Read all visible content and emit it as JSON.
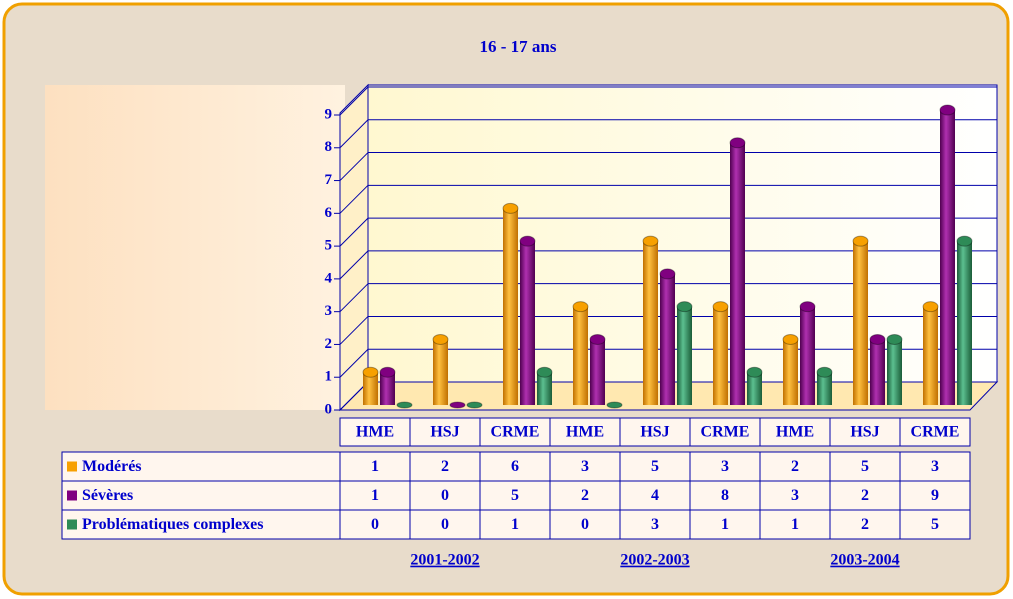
{
  "chart_data": {
    "type": "bar",
    "title": "16 - 17 ans",
    "categories": [
      "HME",
      "HSJ",
      "CRME",
      "HME",
      "HSJ",
      "CRME",
      "HME",
      "HSJ",
      "CRME"
    ],
    "groups": [
      "2001-2002",
      "2002-2003",
      "2003-2004"
    ],
    "series": [
      {
        "name": "Modérés",
        "color": "#f7a000",
        "values": [
          1,
          2,
          6,
          3,
          5,
          3,
          2,
          5,
          3
        ]
      },
      {
        "name": "Sévères",
        "color": "#800080",
        "values": [
          1,
          0,
          5,
          2,
          4,
          8,
          3,
          2,
          9
        ]
      },
      {
        "name": "Problématiques complexes",
        "color": "#2e8b57",
        "values": [
          0,
          0,
          1,
          0,
          3,
          1,
          1,
          2,
          5
        ]
      }
    ],
    "ylim": [
      0,
      9
    ],
    "yticks": [
      0,
      1,
      2,
      3,
      4,
      5,
      6,
      7,
      8,
      9
    ],
    "grid": true
  }
}
